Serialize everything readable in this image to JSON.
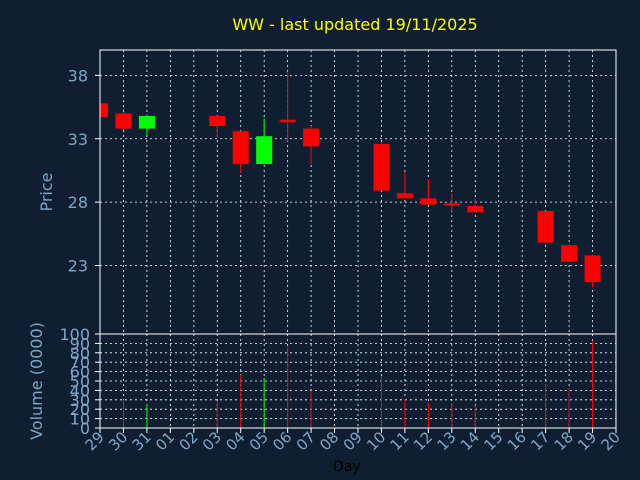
{
  "title": "WW - last updated 19/11/2025",
  "colors": {
    "background": "#0f1f31",
    "title": "#ffff00",
    "axis_text": "#7fa6c6",
    "frame": "#ffffff",
    "grid": "#ffffff",
    "up": "#00ff00",
    "down": "#ff0000"
  },
  "chart_data": [
    {
      "type": "candlestick",
      "title": "WW - last updated 19/11/2025",
      "ylabel": "Price",
      "ylim": [
        17.6,
        40.0
      ],
      "yticks": [
        23,
        28,
        33,
        38
      ],
      "grid": true,
      "categories": [
        "29",
        "30",
        "31",
        "01",
        "02",
        "03",
        "04",
        "05",
        "06",
        "07",
        "08",
        "09",
        "10",
        "11",
        "12",
        "13",
        "14",
        "15",
        "16",
        "17",
        "18",
        "19",
        "20"
      ],
      "candles": [
        {
          "day": "29",
          "open": 35.8,
          "high": 35.8,
          "low": 34.7,
          "close": 34.7
        },
        {
          "day": "30",
          "open": 35.0,
          "high": 35.1,
          "low": 33.7,
          "close": 33.8
        },
        {
          "day": "31",
          "open": 33.8,
          "high": 34.9,
          "low": 33.3,
          "close": 34.8
        },
        {
          "day": "03",
          "open": 34.8,
          "high": 34.8,
          "low": 33.1,
          "close": 34.0
        },
        {
          "day": "04",
          "open": 33.6,
          "high": 33.6,
          "low": 30.3,
          "close": 31.0
        },
        {
          "day": "05",
          "open": 31.0,
          "high": 34.6,
          "low": 31.0,
          "close": 33.2
        },
        {
          "day": "06",
          "open": 34.5,
          "high": 38.3,
          "low": 32.8,
          "close": 34.3
        },
        {
          "day": "07",
          "open": 33.8,
          "high": 34.0,
          "low": 31.0,
          "close": 32.4
        },
        {
          "day": "10",
          "open": 32.6,
          "high": 32.7,
          "low": 28.9,
          "close": 28.9
        },
        {
          "day": "11",
          "open": 28.7,
          "high": 30.4,
          "low": 28.3,
          "close": 28.3
        },
        {
          "day": "12",
          "open": 28.3,
          "high": 29.8,
          "low": 27.8,
          "close": 27.8
        },
        {
          "day": "13",
          "open": 27.9,
          "high": 28.7,
          "low": 27.3,
          "close": 27.8
        },
        {
          "day": "14",
          "open": 27.7,
          "high": 28.3,
          "low": 27.2,
          "close": 27.2
        },
        {
          "day": "17",
          "open": 27.3,
          "high": 27.3,
          "low": 24.8,
          "close": 24.8
        },
        {
          "day": "18",
          "open": 24.6,
          "high": 24.6,
          "low": 23.3,
          "close": 23.3
        },
        {
          "day": "19",
          "open": 23.8,
          "high": 23.8,
          "low": 21.3,
          "close": 21.7
        }
      ]
    },
    {
      "type": "bar",
      "xlabel": "Day",
      "ylabel": "Volume (0000)",
      "ylim": [
        0,
        100
      ],
      "yticks": [
        0,
        10,
        20,
        30,
        40,
        50,
        60,
        70,
        80,
        90,
        100
      ],
      "grid": true,
      "categories": [
        "29",
        "30",
        "31",
        "01",
        "02",
        "03",
        "04",
        "05",
        "06",
        "07",
        "08",
        "09",
        "10",
        "11",
        "12",
        "13",
        "14",
        "15",
        "16",
        "17",
        "18",
        "19",
        "20"
      ],
      "values": [
        0,
        30,
        25,
        0,
        0,
        28,
        57,
        53,
        86,
        40,
        0,
        0,
        55,
        31,
        27,
        25,
        24,
        0,
        0,
        47,
        42,
        93,
        0
      ],
      "directions": [
        "down",
        "down",
        "up",
        "",
        "",
        "down",
        "down",
        "up",
        "down",
        "down",
        "",
        "",
        "down",
        "down",
        "down",
        "down",
        "down",
        "",
        "",
        "down",
        "down",
        "down",
        ""
      ]
    }
  ]
}
